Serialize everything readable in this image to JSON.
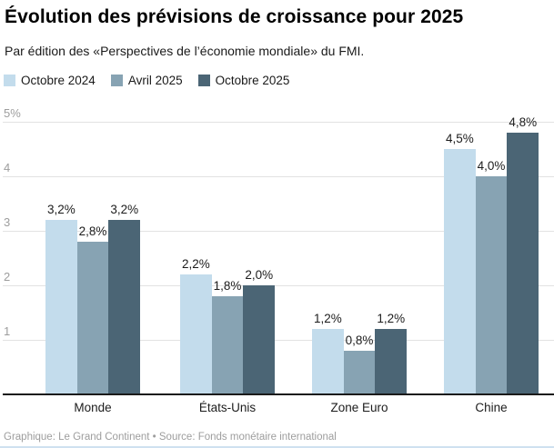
{
  "header": {
    "title": "Évolution des prévisions de croissance pour 2025",
    "subtitle": "Par édition des «Perspectives de l’économie mondiale» du FMI."
  },
  "footer": {
    "attribution": "Graphique: Le Grand Continent • Source: Fonds monétaire international"
  },
  "colors": {
    "series_light": "#c3dcec",
    "series_medium": "#87a3b3",
    "series_dark": "#4b6575",
    "gridline": "#e2e2e2",
    "baseline": "#1a1a1a",
    "muted_text": "#9d9d9d",
    "bottom_rule": "#cfe1f0"
  },
  "chart_data": {
    "type": "bar",
    "title": "Évolution des prévisions de croissance pour 2025",
    "subtitle": "Par édition des «Perspectives de l’économie mondiale» du FMI.",
    "categories": [
      "Monde",
      "États-Unis",
      "Zone Euro",
      "Chine"
    ],
    "series": [
      {
        "name": "Octobre 2024",
        "color": "#c3dcec",
        "values": [
          3.2,
          2.2,
          1.2,
          4.5
        ],
        "labels": [
          "3,2%",
          "2,2%",
          "1,2%",
          "4,5%"
        ]
      },
      {
        "name": "Avril 2025",
        "color": "#87a3b3",
        "values": [
          2.8,
          1.8,
          0.8,
          4.0
        ],
        "labels": [
          "2,8%",
          "1,8%",
          "0,8%",
          "4,0%"
        ]
      },
      {
        "name": "Octobre 2025",
        "color": "#4b6575",
        "values": [
          3.2,
          2.0,
          1.2,
          4.8
        ],
        "labels": [
          "3,2%",
          "2,0%",
          "1,2%",
          "4,8%"
        ]
      }
    ],
    "xlabel": "",
    "ylabel": "",
    "ylim": [
      0,
      5
    ],
    "yticks": [
      {
        "v": 1,
        "label": "1"
      },
      {
        "v": 2,
        "label": "2"
      },
      {
        "v": 3,
        "label": "3"
      },
      {
        "v": 4,
        "label": "4"
      },
      {
        "v": 5,
        "label": "5%"
      }
    ],
    "grid": true,
    "legend_position": "top-left",
    "value_labels_shown": true
  }
}
